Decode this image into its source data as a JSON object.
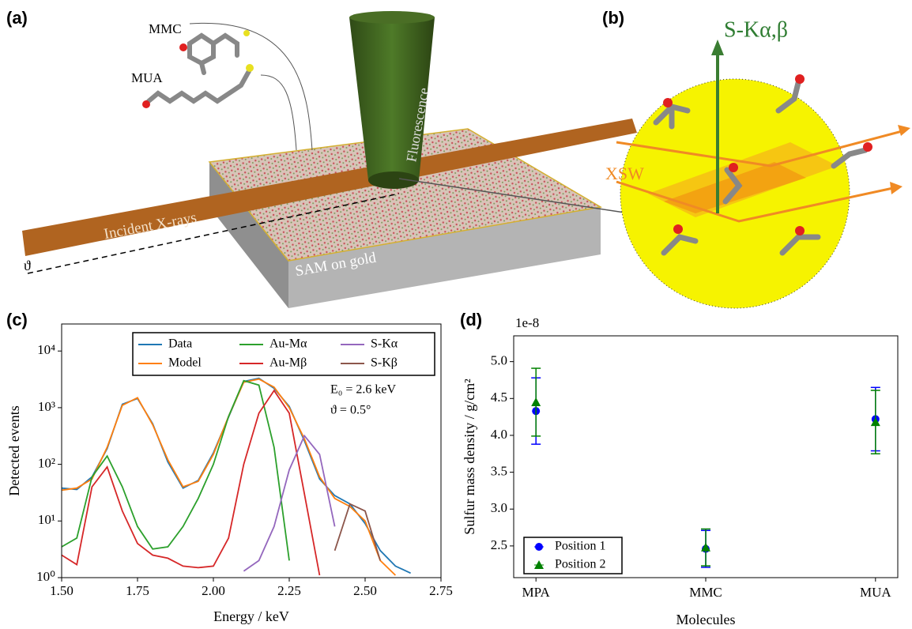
{
  "panel_labels": [
    "(a)",
    "(b)",
    "(c)",
    "(d)"
  ],
  "illustration_a": {
    "molecule_1": "MMC",
    "molecule_2": "MUA",
    "cone_label": "Fluorescence",
    "beam_label": "Incident X-rays",
    "substrate_label": "SAM on gold",
    "angle_label": "ϑ"
  },
  "illustration_b": {
    "emission_label": "S-Kα,β",
    "standing_wave_label": "XSW"
  },
  "chart_data": [
    {
      "type": "line",
      "xlabel": "Energy / keV",
      "ylabel": "Detected events",
      "log_y": true,
      "annotations": [
        "E₀ = 2.6 keV",
        "ϑ = 0.5°"
      ],
      "legend": "top",
      "x": [
        1.5,
        1.55,
        1.6,
        1.65,
        1.7,
        1.75,
        1.8,
        1.85,
        1.9,
        1.95,
        2.0,
        2.05,
        2.1,
        2.15,
        2.2,
        2.25,
        2.3,
        2.35,
        2.4,
        2.45,
        2.5,
        2.55,
        2.6,
        2.65,
        2.7
      ],
      "xlim": [
        1.5,
        2.75
      ],
      "xticks": [
        {
          "value": 1.5,
          "label": "1.50"
        },
        1.75,
        {
          "value": 2,
          "label": "2.00"
        },
        2.25,
        {
          "value": 2.5,
          "label": "2.50"
        },
        2.75
      ],
      "ylim": [
        1,
        30000
      ],
      "yticks": [
        {
          "value": 1,
          "label": "10⁰"
        },
        {
          "value": 10,
          "label": "10¹"
        },
        {
          "value": 100,
          "label": "10²"
        },
        {
          "value": 1000,
          "label": "10³"
        },
        {
          "value": 10000,
          "label": "10⁴"
        }
      ],
      "series": [
        {
          "name": "Data",
          "color": "#1f77b4",
          "values": [
            38,
            36,
            60,
            190,
            1150,
            1450,
            520,
            110,
            38,
            52,
            160,
            680,
            2900,
            3300,
            2200,
            1050,
            260,
            55,
            28,
            20,
            9,
            3,
            1.6,
            1.2,
            null
          ]
        },
        {
          "name": "Model",
          "color": "#ff7f0e",
          "values": [
            35,
            38,
            55,
            200,
            1100,
            1500,
            500,
            120,
            40,
            50,
            150,
            700,
            2800,
            3200,
            2300,
            1000,
            280,
            60,
            25,
            18,
            10,
            2,
            1.1,
            null,
            null
          ]
        },
        {
          "name": "Au-Mα",
          "color": "#2ca02c",
          "values": [
            3.5,
            5,
            60,
            140,
            40,
            8,
            3.2,
            3.5,
            8,
            25,
            100,
            700,
            3000,
            2500,
            200,
            2,
            null,
            null,
            null,
            null,
            null,
            null,
            null,
            null,
            null
          ]
        },
        {
          "name": "Au-Mβ",
          "color": "#d62728",
          "values": [
            2.5,
            1.7,
            40,
            90,
            15,
            4,
            2.5,
            2.2,
            1.6,
            1.5,
            1.6,
            5,
            100,
            800,
            2000,
            800,
            30,
            1.1,
            null,
            null,
            null,
            null,
            null,
            null,
            null
          ]
        },
        {
          "name": "S-Kα",
          "color": "#9467bd",
          "values": [
            null,
            null,
            null,
            null,
            null,
            null,
            null,
            null,
            null,
            null,
            null,
            null,
            1.3,
            2,
            8,
            80,
            320,
            150,
            8,
            null,
            null,
            null,
            null,
            null,
            null
          ]
        },
        {
          "name": "S-Kβ",
          "color": "#8c564b",
          "values": [
            null,
            null,
            null,
            null,
            null,
            null,
            null,
            null,
            null,
            null,
            null,
            null,
            null,
            null,
            null,
            null,
            null,
            null,
            3,
            20,
            15,
            2,
            null,
            null,
            null
          ]
        }
      ]
    },
    {
      "type": "errorbar",
      "xlabel": "Molecules",
      "ylabel": "Sulfur mass density / g/cm²",
      "y_offset_label": "1e-8",
      "legend": "lower left",
      "categories": [
        "MPA",
        "MMC",
        "MUA"
      ],
      "ylim": [
        2.07,
        5.35
      ],
      "yticks": [
        2.5,
        {
          "value": 3,
          "label": "3.0"
        },
        3.5,
        {
          "value": 4,
          "label": "4.0"
        },
        4.5,
        {
          "value": 5,
          "label": "5.0"
        }
      ],
      "series": [
        {
          "name": "Position 1",
          "color": "#0000ff",
          "marker": "circle",
          "values": [
            4.33,
            2.46,
            4.22
          ],
          "errors": [
            0.45,
            0.25,
            0.43
          ]
        },
        {
          "name": "Position 2",
          "color": "#008000",
          "marker": "triangle",
          "values": [
            4.45,
            2.48,
            4.18
          ],
          "errors": [
            0.46,
            0.25,
            0.43
          ]
        }
      ]
    }
  ]
}
